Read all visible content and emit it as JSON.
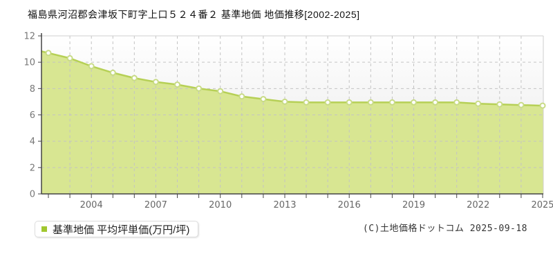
{
  "title": "福島県河沼郡会津坂下町字上口５２４番２ 基準地価 地価推移[2002-2025]",
  "legend": {
    "label": "基準地価 平均坪単価(万円/坪)",
    "swatch_color": "#a1c72f"
  },
  "footer": {
    "copyright": "(C)土地価格ドットコム 2025-09-18"
  },
  "chart_data": {
    "type": "area",
    "title": "福島県河沼郡会津坂下町字上口５２４番２ 基準地価 地価推移[2002-2025]",
    "series_name": "基準地価 平均坪単価(万円/坪)",
    "x": [
      2002,
      2003,
      2004,
      2005,
      2006,
      2007,
      2008,
      2009,
      2010,
      2011,
      2012,
      2013,
      2014,
      2015,
      2016,
      2017,
      2018,
      2019,
      2020,
      2021,
      2022,
      2023,
      2024,
      2025
    ],
    "values": [
      10.7,
      10.3,
      9.7,
      9.2,
      8.8,
      8.5,
      8.3,
      8.0,
      7.8,
      7.4,
      7.2,
      7.0,
      6.95,
      6.95,
      6.95,
      6.95,
      6.95,
      6.95,
      6.95,
      6.95,
      6.85,
      6.8,
      6.75,
      6.7
    ],
    "ylabel": "",
    "xlabel": "",
    "ylim": [
      0,
      12
    ],
    "yticks": [
      0,
      2,
      4,
      6,
      8,
      10,
      12
    ],
    "xtick_labels": [
      2004,
      2007,
      2010,
      2013,
      2016,
      2019,
      2022,
      2025
    ],
    "grid": true,
    "legend_position": "bottom-left",
    "colors": {
      "area_fill": "#d8e692",
      "line": "#b6d056",
      "marker_fill": "#ffffff",
      "marker_stroke": "#c8db85",
      "grid": "#c3c3c3",
      "axis": "#444444",
      "border": "#cfcfcf",
      "bg_top": "#ffffff",
      "bg_bottom": "#e6e6e6"
    }
  }
}
